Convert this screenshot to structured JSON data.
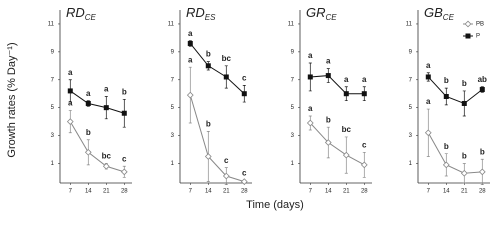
{
  "y_label": "Growth rates (% Day⁻¹)",
  "x_label": "Time (days)",
  "chart_data": [
    {
      "type": "line",
      "title": "RD",
      "title_sub": "CE",
      "xlim": [
        3,
        31
      ],
      "xticks": [
        7,
        14,
        21,
        28
      ],
      "ylim": [
        -0.4,
        12
      ],
      "yticks": [
        1,
        3,
        5,
        7,
        9,
        11
      ],
      "x": [
        7,
        14,
        21,
        28
      ],
      "series": [
        {
          "color": "#888888",
          "marker": "diamond",
          "values": [
            4.0,
            1.8,
            0.8,
            0.4
          ],
          "errors": [
            0.8,
            0.9,
            0.2,
            0.4
          ],
          "letters": [
            "a",
            "b",
            "bc",
            "c"
          ]
        },
        {
          "color": "#111111",
          "marker": "square",
          "values": [
            6.2,
            5.3,
            5.0,
            4.6
          ],
          "errors": [
            0.8,
            0.2,
            0.8,
            1.0
          ],
          "letters": [
            "a",
            "a",
            "a",
            "b"
          ]
        }
      ]
    },
    {
      "type": "line",
      "title": "RD",
      "title_sub": "ES",
      "xlim": [
        3,
        31
      ],
      "xticks": [
        7,
        14,
        21,
        28
      ],
      "ylim": [
        -0.4,
        12
      ],
      "yticks": [
        1,
        3,
        5,
        7,
        9,
        11
      ],
      "x": [
        7,
        14,
        21,
        28
      ],
      "series": [
        {
          "color": "#888888",
          "marker": "diamond",
          "values": [
            5.9,
            1.5,
            0.1,
            -0.3
          ],
          "errors": [
            2.0,
            1.8,
            0.6,
            0.1
          ],
          "letters": [
            "a",
            "b",
            "c",
            "c"
          ]
        },
        {
          "color": "#111111",
          "marker": "square",
          "values": [
            9.6,
            8.0,
            7.2,
            6.0
          ],
          "errors": [
            0.2,
            0.3,
            0.8,
            0.6
          ],
          "letters": [
            "a",
            "b",
            "bc",
            "c"
          ]
        }
      ]
    },
    {
      "type": "line",
      "title": "GR",
      "title_sub": "CE",
      "xlim": [
        3,
        31
      ],
      "xticks": [
        7,
        14,
        21,
        28
      ],
      "ylim": [
        -0.4,
        12
      ],
      "yticks": [
        1,
        3,
        5,
        7,
        9,
        11
      ],
      "x": [
        7,
        14,
        21,
        28
      ],
      "series": [
        {
          "color": "#888888",
          "marker": "diamond",
          "values": [
            3.9,
            2.5,
            1.6,
            0.9
          ],
          "errors": [
            0.5,
            1.1,
            1.3,
            0.9
          ],
          "letters": [
            "a",
            "b",
            "bc",
            "c"
          ]
        },
        {
          "color": "#111111",
          "marker": "square",
          "values": [
            7.2,
            7.3,
            6.0,
            6.0
          ],
          "errors": [
            1.0,
            0.5,
            0.5,
            0.5
          ],
          "letters": [
            "a",
            "a",
            "a",
            "a"
          ]
        }
      ]
    },
    {
      "type": "line",
      "title": "GB",
      "title_sub": "CE",
      "xlim": [
        3,
        31
      ],
      "xticks": [
        7,
        14,
        21,
        28
      ],
      "ylim": [
        -0.4,
        12
      ],
      "yticks": [
        1,
        3,
        5,
        7,
        9,
        11
      ],
      "x": [
        7,
        14,
        21,
        28
      ],
      "legend": "upper right",
      "series": [
        {
          "name": "PB",
          "color": "#888888",
          "marker": "diamond",
          "values": [
            3.2,
            0.9,
            0.3,
            0.4
          ],
          "errors": [
            1.7,
            0.8,
            0.7,
            0.9
          ],
          "letters": [
            "a",
            "b",
            "b",
            "b"
          ]
        },
        {
          "name": "P",
          "color": "#111111",
          "marker": "square",
          "values": [
            7.2,
            5.8,
            5.3,
            6.3
          ],
          "errors": [
            0.3,
            0.6,
            0.9,
            0.2
          ],
          "letters": [
            "a",
            "b",
            "b",
            "ab"
          ]
        }
      ]
    }
  ]
}
